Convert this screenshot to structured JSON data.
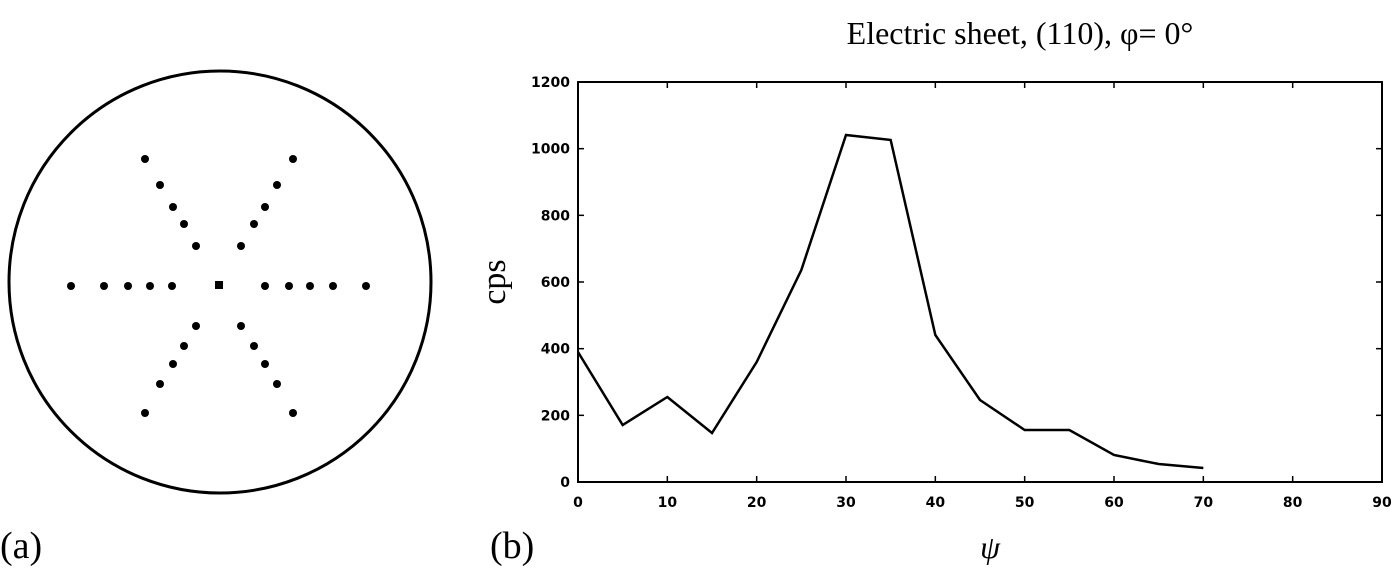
{
  "panel_labels": [
    "(a)",
    "(b)"
  ],
  "chart_data": {
    "type": "line",
    "title": "Electric sheet, (110), φ= 0°",
    "xlabel": "ψ",
    "ylabel": "cps",
    "x": [
      0,
      5,
      10,
      15,
      20,
      25,
      30,
      35,
      40,
      45,
      50,
      55,
      60,
      65,
      70
    ],
    "series": [
      {
        "color": "#000000",
        "values": [
          390,
          171,
          255,
          147,
          360,
          636,
          1041,
          1026,
          441,
          246,
          156,
          156,
          81,
          54,
          42
        ]
      }
    ],
    "xlim": [
      0,
      90
    ],
    "xticks": [
      0,
      10,
      20,
      30,
      40,
      50,
      60,
      70,
      80,
      90
    ],
    "ylim": [
      0,
      1200
    ],
    "yticks": [
      0,
      200,
      400,
      600,
      800,
      1000,
      1200
    ]
  }
}
